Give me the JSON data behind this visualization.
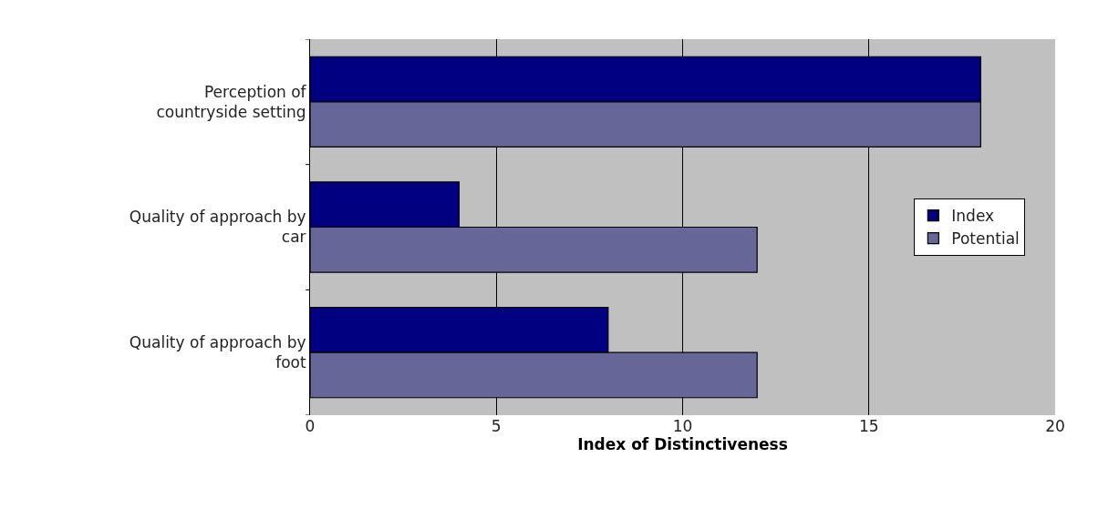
{
  "chart_data": {
    "type": "bar",
    "orientation": "horizontal",
    "xlabel": "Index of Distinctiveness",
    "categories": [
      "Perception of countryside setting",
      "Quality of approach by car",
      "Quality of approach by foot"
    ],
    "series": [
      {
        "name": "Index",
        "color": "#000080",
        "values": [
          18,
          4,
          8
        ]
      },
      {
        "name": "Potential",
        "color": "#666699",
        "values": [
          18,
          12,
          12
        ]
      }
    ],
    "xlim": [
      0,
      20
    ],
    "xticks": [
      0,
      5,
      10,
      15,
      20
    ],
    "grid": "x",
    "legend": "right"
  }
}
